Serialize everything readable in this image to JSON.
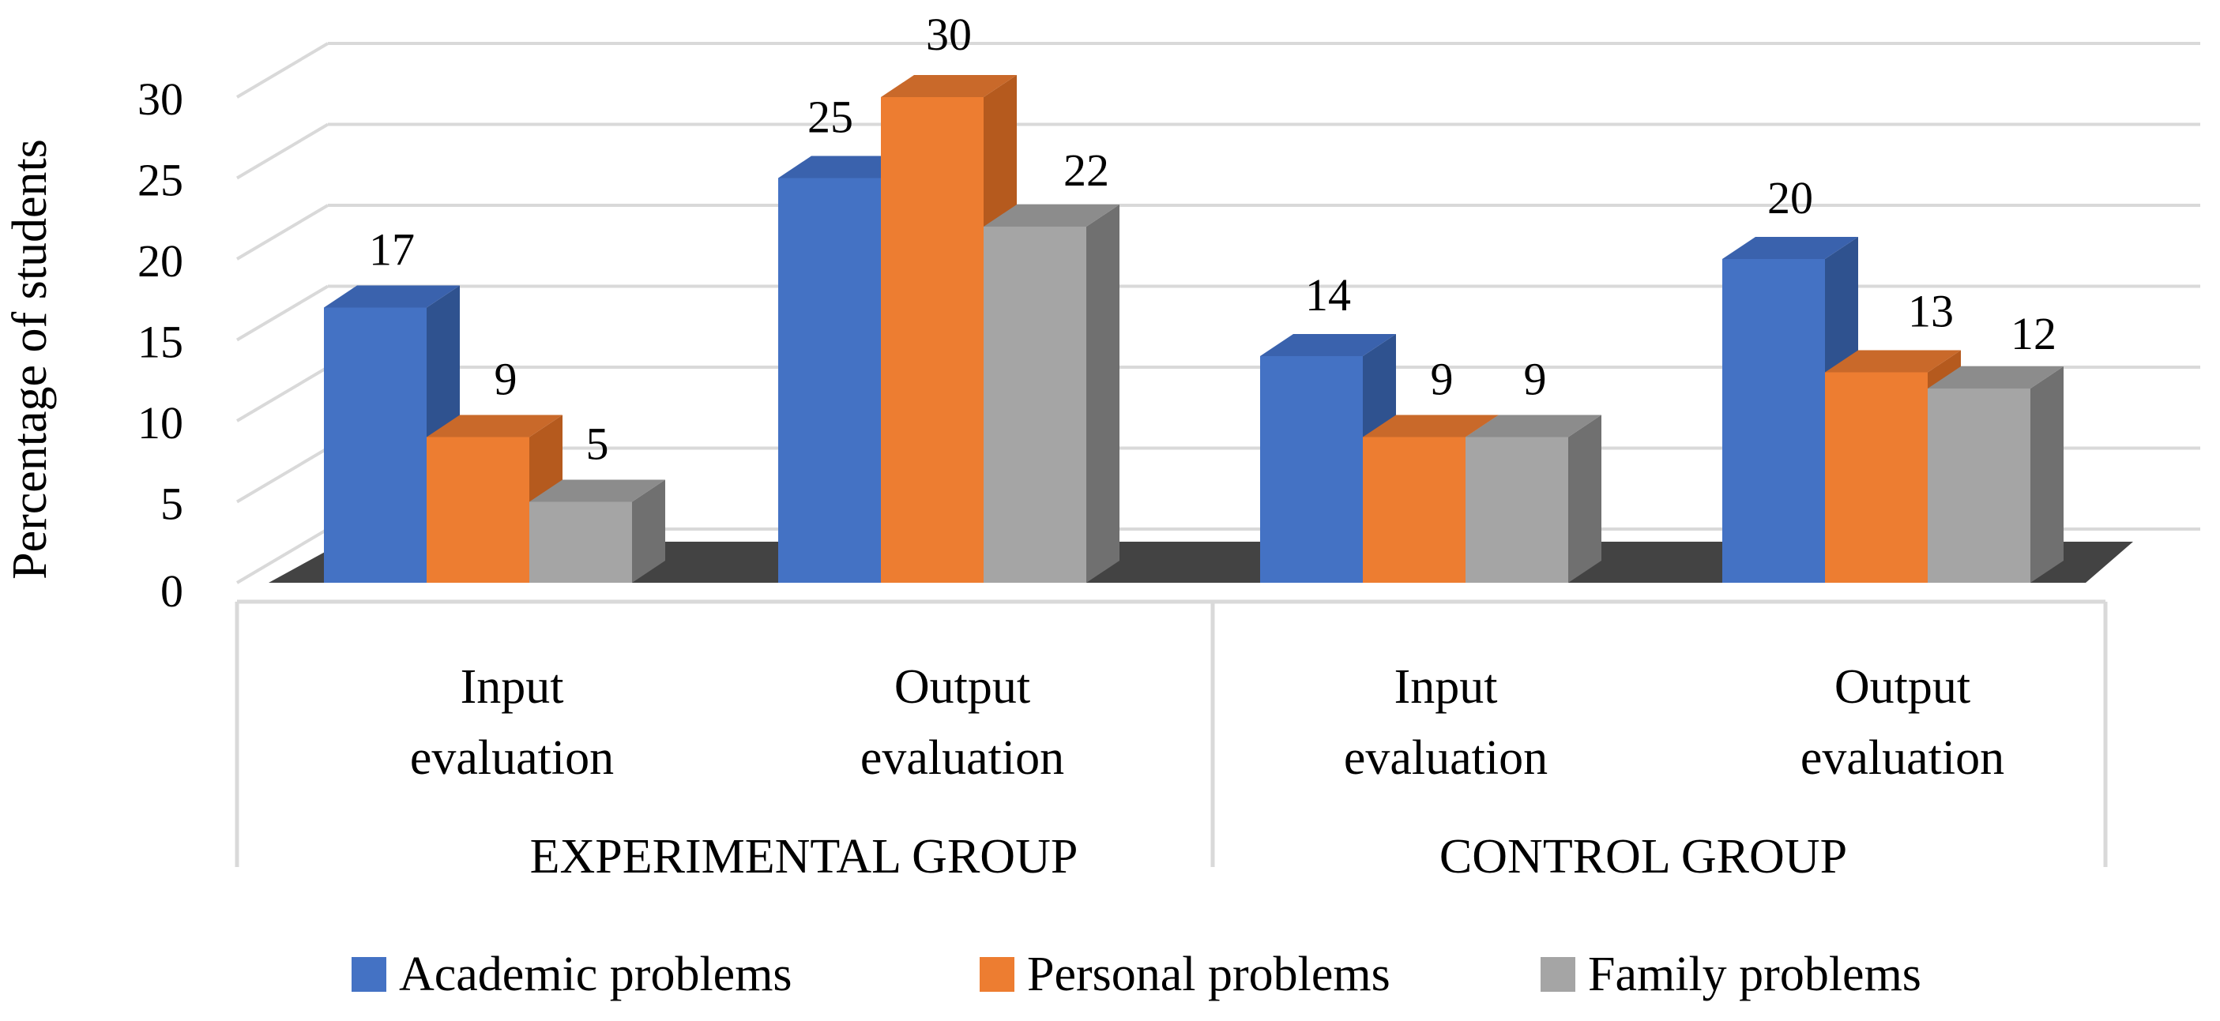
{
  "chart_data": {
    "type": "bar",
    "style": "3d-clustered-column",
    "ylabel": "Percentage of students",
    "xlabel": "",
    "ylim": [
      0,
      30
    ],
    "yticks": [
      0,
      5,
      10,
      15,
      20,
      25,
      30
    ],
    "grid": true,
    "groups": [
      {
        "label": "EXPERIMENTAL GROUP",
        "categories": [
          0,
          1
        ]
      },
      {
        "label": "CONTROL GROUP",
        "categories": [
          2,
          3
        ]
      }
    ],
    "categories": [
      {
        "line1": "Input",
        "line2": "evaluation"
      },
      {
        "line1": "Output",
        "line2": "evaluation"
      },
      {
        "line1": "Input",
        "line2": "evaluation"
      },
      {
        "line1": "Output",
        "line2": "evaluation"
      }
    ],
    "series": [
      {
        "name": "Academic problems",
        "values": [
          17,
          25,
          14,
          20
        ],
        "color": "#4472c4",
        "color_side": "#2f528f",
        "color_top": "#3a62ad"
      },
      {
        "name": "Personal problems",
        "values": [
          9,
          30,
          9,
          13
        ],
        "color": "#ed7d31",
        "color_side": "#b55a1e",
        "color_top": "#c9692a"
      },
      {
        "name": "Family problems",
        "values": [
          5,
          22,
          9,
          12
        ],
        "color": "#a5a5a5",
        "color_side": "#707070",
        "color_top": "#8c8c8c"
      }
    ],
    "legend_position": "bottom"
  }
}
